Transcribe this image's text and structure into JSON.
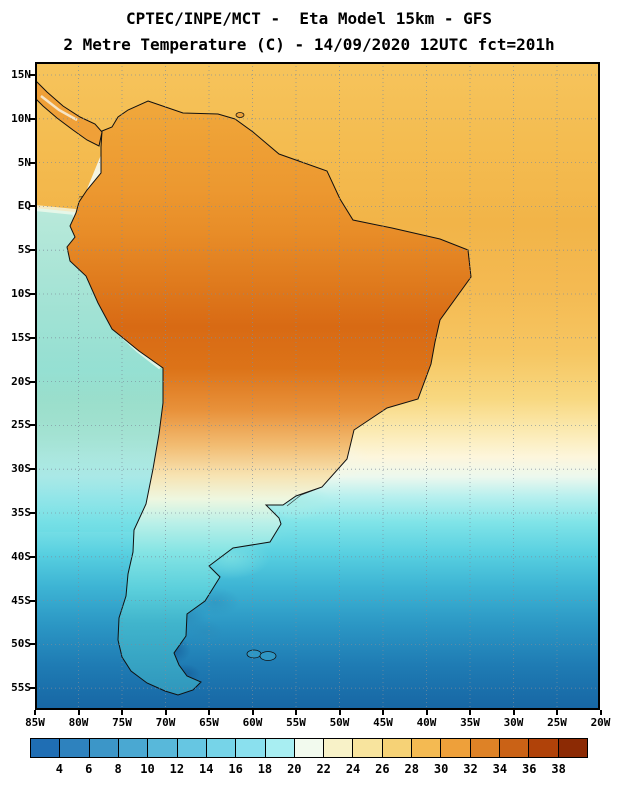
{
  "header": {
    "title_line1": "CPTEC/INPE/MCT -  Eta Model 15km - GFS",
    "title_line2": "2 Metre Temperature (C) - 14/09/2020 12UTC fct=201h"
  },
  "map": {
    "lat_labels": [
      "15N",
      "10N",
      "5N",
      "EQ",
      "5S",
      "10S",
      "15S",
      "20S",
      "25S",
      "30S",
      "35S",
      "40S",
      "45S",
      "50S",
      "55S"
    ],
    "lon_labels": [
      "85W",
      "80W",
      "75W",
      "70W",
      "65W",
      "60W",
      "55W",
      "50W",
      "45W",
      "40W",
      "35W",
      "30W",
      "25W",
      "20W"
    ]
  },
  "colorbar": {
    "tick_labels": [
      "4",
      "6",
      "8",
      "10",
      "12",
      "14",
      "16",
      "18",
      "20",
      "22",
      "24",
      "26",
      "28",
      "30",
      "32",
      "34",
      "36",
      "38"
    ],
    "segment_colors": [
      "#1f6eb4",
      "#2e82be",
      "#3c96c8",
      "#4aa8d2",
      "#58b8da",
      "#66c6e2",
      "#76d4e8",
      "#8ae0ee",
      "#a8eef2",
      "#f2faee",
      "#f8f2c8",
      "#f8e49e",
      "#f6d276",
      "#f4ba52",
      "#eea03a",
      "#de8226",
      "#ca6216",
      "#b04209",
      "#8c2a04"
    ]
  },
  "chart_data": {
    "type": "heatmap",
    "title": "2 Metre Temperature (C)",
    "model": "Eta Model 15km - GFS",
    "source": "CPTEC/INPE/MCT",
    "valid_time": "14/09/2020 12UTC fct=201h",
    "x_ticks": [
      "85W",
      "80W",
      "75W",
      "70W",
      "65W",
      "60W",
      "55W",
      "50W",
      "45W",
      "40W",
      "35W",
      "30W",
      "25W",
      "20W"
    ],
    "y_ticks": [
      "15N",
      "10N",
      "5N",
      "EQ",
      "5S",
      "10S",
      "15S",
      "20S",
      "25S",
      "30S",
      "35S",
      "40S",
      "45S",
      "50S",
      "55S"
    ],
    "colorbar_values_c": [
      4,
      6,
      8,
      10,
      12,
      14,
      16,
      18,
      20,
      22,
      24,
      26,
      28,
      30,
      32,
      34,
      36,
      38
    ],
    "legend_position": "bottom",
    "grid": "dotted"
  }
}
